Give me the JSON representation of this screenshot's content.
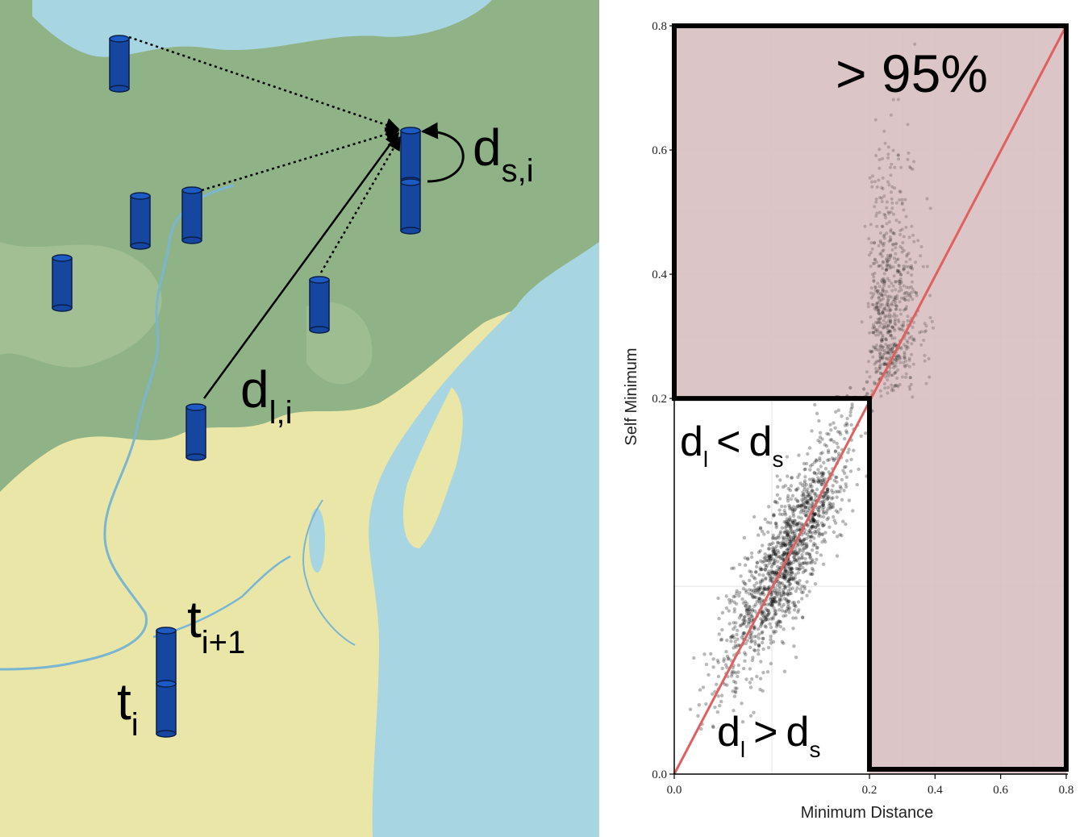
{
  "map": {
    "labels": {
      "ds_main": "d",
      "ds_sub": "s,i",
      "dl_main": "d",
      "dl_sub": "l,i",
      "ti1_main": "t",
      "ti1_sub": "i+1",
      "ti_main": "t",
      "ti_sub": "i"
    },
    "colors": {
      "water": "#a8d5e2",
      "forest": "#8fb386",
      "farmland": "#e9e6a8",
      "cylinder": "#1546a0"
    }
  },
  "plot": {
    "annotations": {
      "pct": "> 95%",
      "lt_left_main": "d",
      "lt_left_sub": "l",
      "lt_op": "<",
      "lt_right_main": "d",
      "lt_right_sub": "s",
      "gt_left_main": "d",
      "gt_left_sub": "l",
      "gt_op": ">",
      "gt_right_main": "d",
      "gt_right_sub": "s"
    },
    "colors": {
      "region": "#d8bfc0",
      "line": "#e06060",
      "points": "#000000"
    }
  },
  "chart_data": {
    "type": "scatter",
    "xlabel": "Minimum Distance",
    "ylabel": "Self Minimum",
    "xlim": [
      0,
      0.8
    ],
    "ylim": [
      0,
      0.8
    ],
    "x_ticks": [
      "0.0",
      "0.2",
      "0.4",
      "0.6",
      "0.8"
    ],
    "y_ticks": [
      "0.0",
      "0.2",
      "0.4",
      "0.6",
      "0.8"
    ],
    "reference_line": {
      "from": [
        0,
        0
      ],
      "to": [
        0.8,
        0.8
      ]
    },
    "threshold": 0.2,
    "grid": true
  }
}
